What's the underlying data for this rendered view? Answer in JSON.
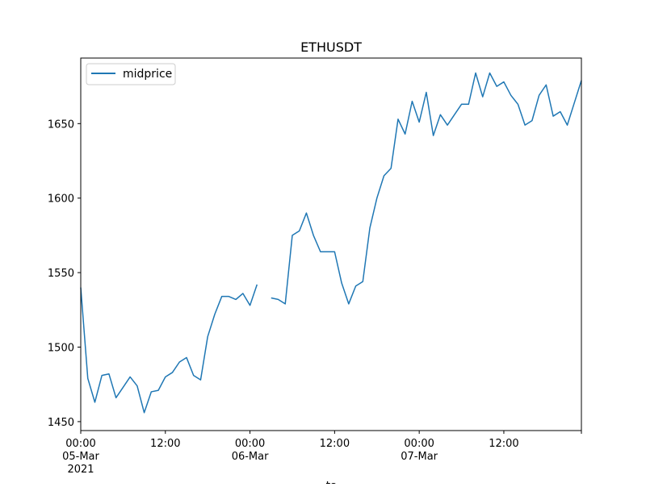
{
  "chart_data": {
    "type": "line",
    "title": "ETHUSDT",
    "xlabel": "ts",
    "ylabel": "",
    "legend": {
      "placement": "top-left",
      "entries": [
        "midprice"
      ]
    },
    "grid": false,
    "line_color": "#1f77b4",
    "xlim": [
      "2021-03-05T00:00",
      "2021-03-07T23:00"
    ],
    "ylim": [
      1444,
      1694
    ],
    "yticks": [
      1450,
      1500,
      1550,
      1600,
      1650
    ],
    "xticks": [
      {
        "at": "2021-03-05T00:00",
        "lines": [
          "00:00",
          "05-Mar",
          "2021"
        ]
      },
      {
        "at": "2021-03-05T12:00",
        "lines": [
          "12:00"
        ]
      },
      {
        "at": "2021-03-06T00:00",
        "lines": [
          "00:00",
          "06-Mar"
        ]
      },
      {
        "at": "2021-03-06T12:00",
        "lines": [
          "12:00"
        ]
      },
      {
        "at": "2021-03-07T00:00",
        "lines": [
          "00:00",
          "07-Mar"
        ]
      },
      {
        "at": "2021-03-07T12:00",
        "lines": [
          "12:00"
        ]
      }
    ],
    "series": [
      {
        "name": "midprice",
        "start": "2021-03-05T00:00",
        "step_hours": 1,
        "values": [
          1540,
          1479,
          1463,
          1481,
          1482,
          1466,
          1473,
          1480,
          1474,
          1456,
          1470,
          1471,
          1480,
          1483,
          1490,
          1493,
          1481,
          1478,
          1507,
          1522,
          1534,
          1534,
          1532,
          1536,
          1528,
          1542,
          null,
          1533,
          1532,
          1529,
          1575,
          1578,
          1590,
          1575,
          1564,
          1564,
          1564,
          1543,
          1529,
          1541,
          1544,
          1580,
          1600,
          1615,
          1620,
          1653,
          1643,
          1665,
          1651,
          1671,
          1642,
          1656,
          1649,
          1656,
          1663,
          1663,
          1684,
          1668,
          1684,
          1675,
          1678,
          1669,
          1663,
          1649,
          1652,
          1669,
          1676,
          1655,
          1658,
          1649,
          1664,
          1679
        ]
      }
    ]
  }
}
